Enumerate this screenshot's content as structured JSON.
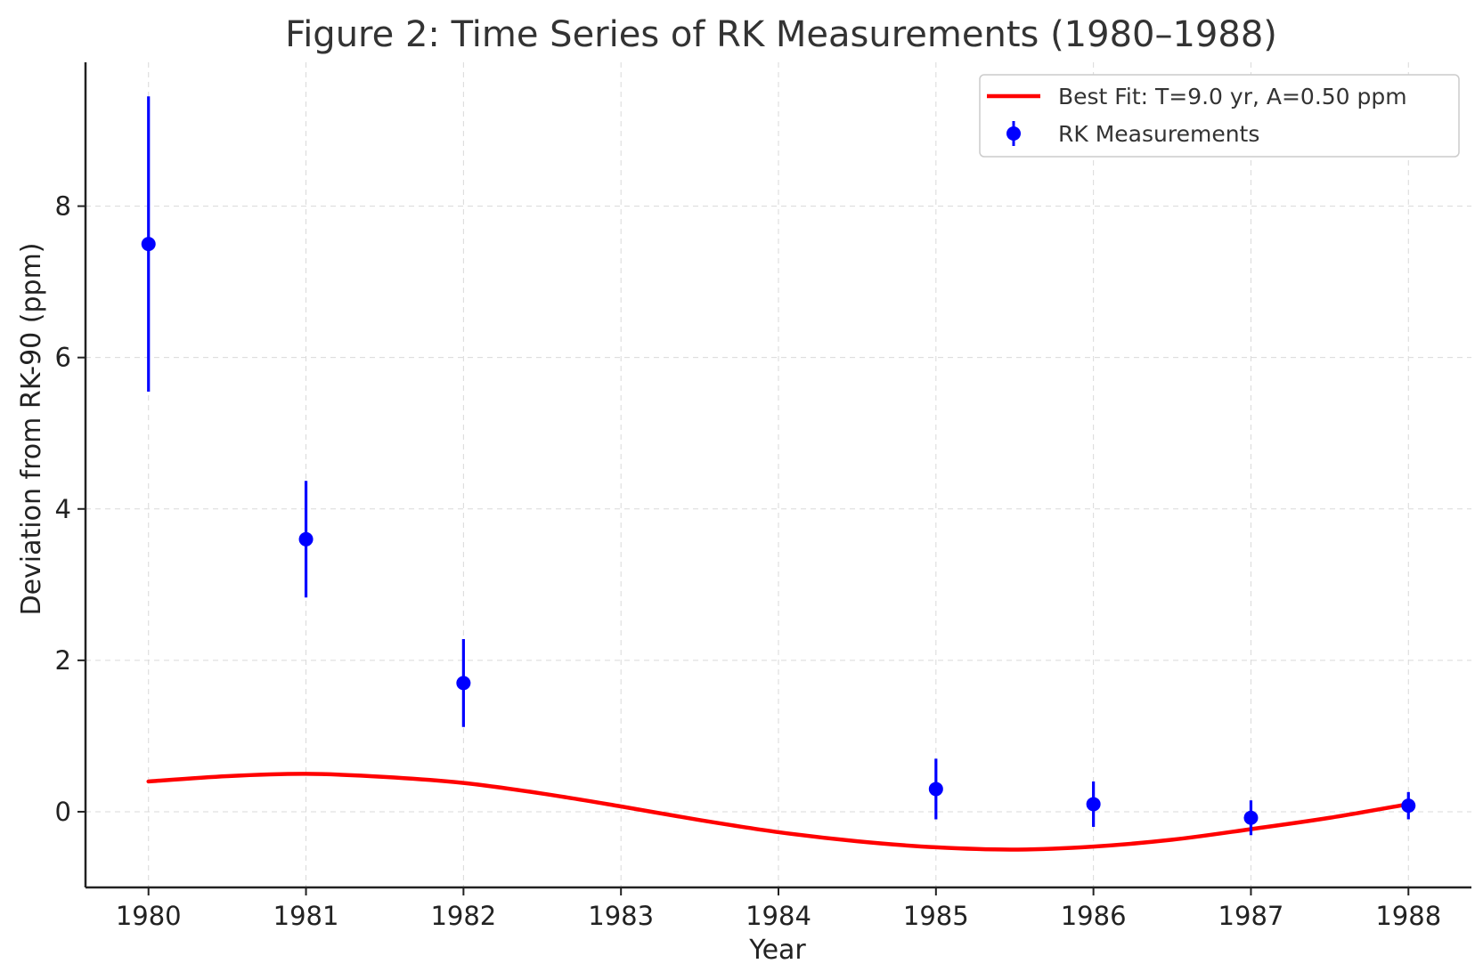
{
  "chart_data": {
    "type": "scatter",
    "title": "Figure 2: Time Series of RK Measurements (1980–1988)",
    "xlabel": "Year",
    "ylabel": "Deviation from RK-90 (ppm)",
    "xlim": [
      1979.6,
      1988.4
    ],
    "ylim": [
      -1.0,
      9.9
    ],
    "xticks": [
      1980,
      1981,
      1982,
      1983,
      1984,
      1985,
      1986,
      1987,
      1988
    ],
    "xtick_labels": [
      "1980",
      "1981",
      "1982",
      "1983",
      "1984",
      "1985",
      "1986",
      "1987",
      "1988"
    ],
    "yticks": [
      0,
      2,
      4,
      6,
      8
    ],
    "ytick_labels": [
      "0",
      "2",
      "4",
      "6",
      "8"
    ],
    "grid": true,
    "legend_position": "top-right",
    "series": [
      {
        "name": "RK Measurements",
        "kind": "errorbar",
        "color": "#0000ff",
        "x": [
          1980,
          1981,
          1982,
          1985,
          1986,
          1987,
          1988
        ],
        "y": [
          7.5,
          3.6,
          1.7,
          0.3,
          0.1,
          -0.08,
          0.08
        ],
        "yerr": [
          1.95,
          0.77,
          0.58,
          0.4,
          0.3,
          0.23,
          0.18
        ]
      },
      {
        "name": "Best Fit: T=9.0 yr, A=0.50 ppm",
        "kind": "line",
        "color": "#ff0000",
        "x": [
          1980,
          1980.5,
          1981,
          1981.5,
          1982,
          1982.5,
          1983,
          1983.5,
          1984,
          1984.5,
          1985,
          1985.5,
          1986,
          1986.5,
          1987,
          1987.5,
          1988
        ],
        "y": [
          0.4,
          0.47,
          0.5,
          0.46,
          0.38,
          0.24,
          0.07,
          -0.11,
          -0.27,
          -0.39,
          -0.47,
          -0.5,
          -0.46,
          -0.37,
          -0.23,
          -0.08,
          0.1
        ]
      }
    ]
  }
}
